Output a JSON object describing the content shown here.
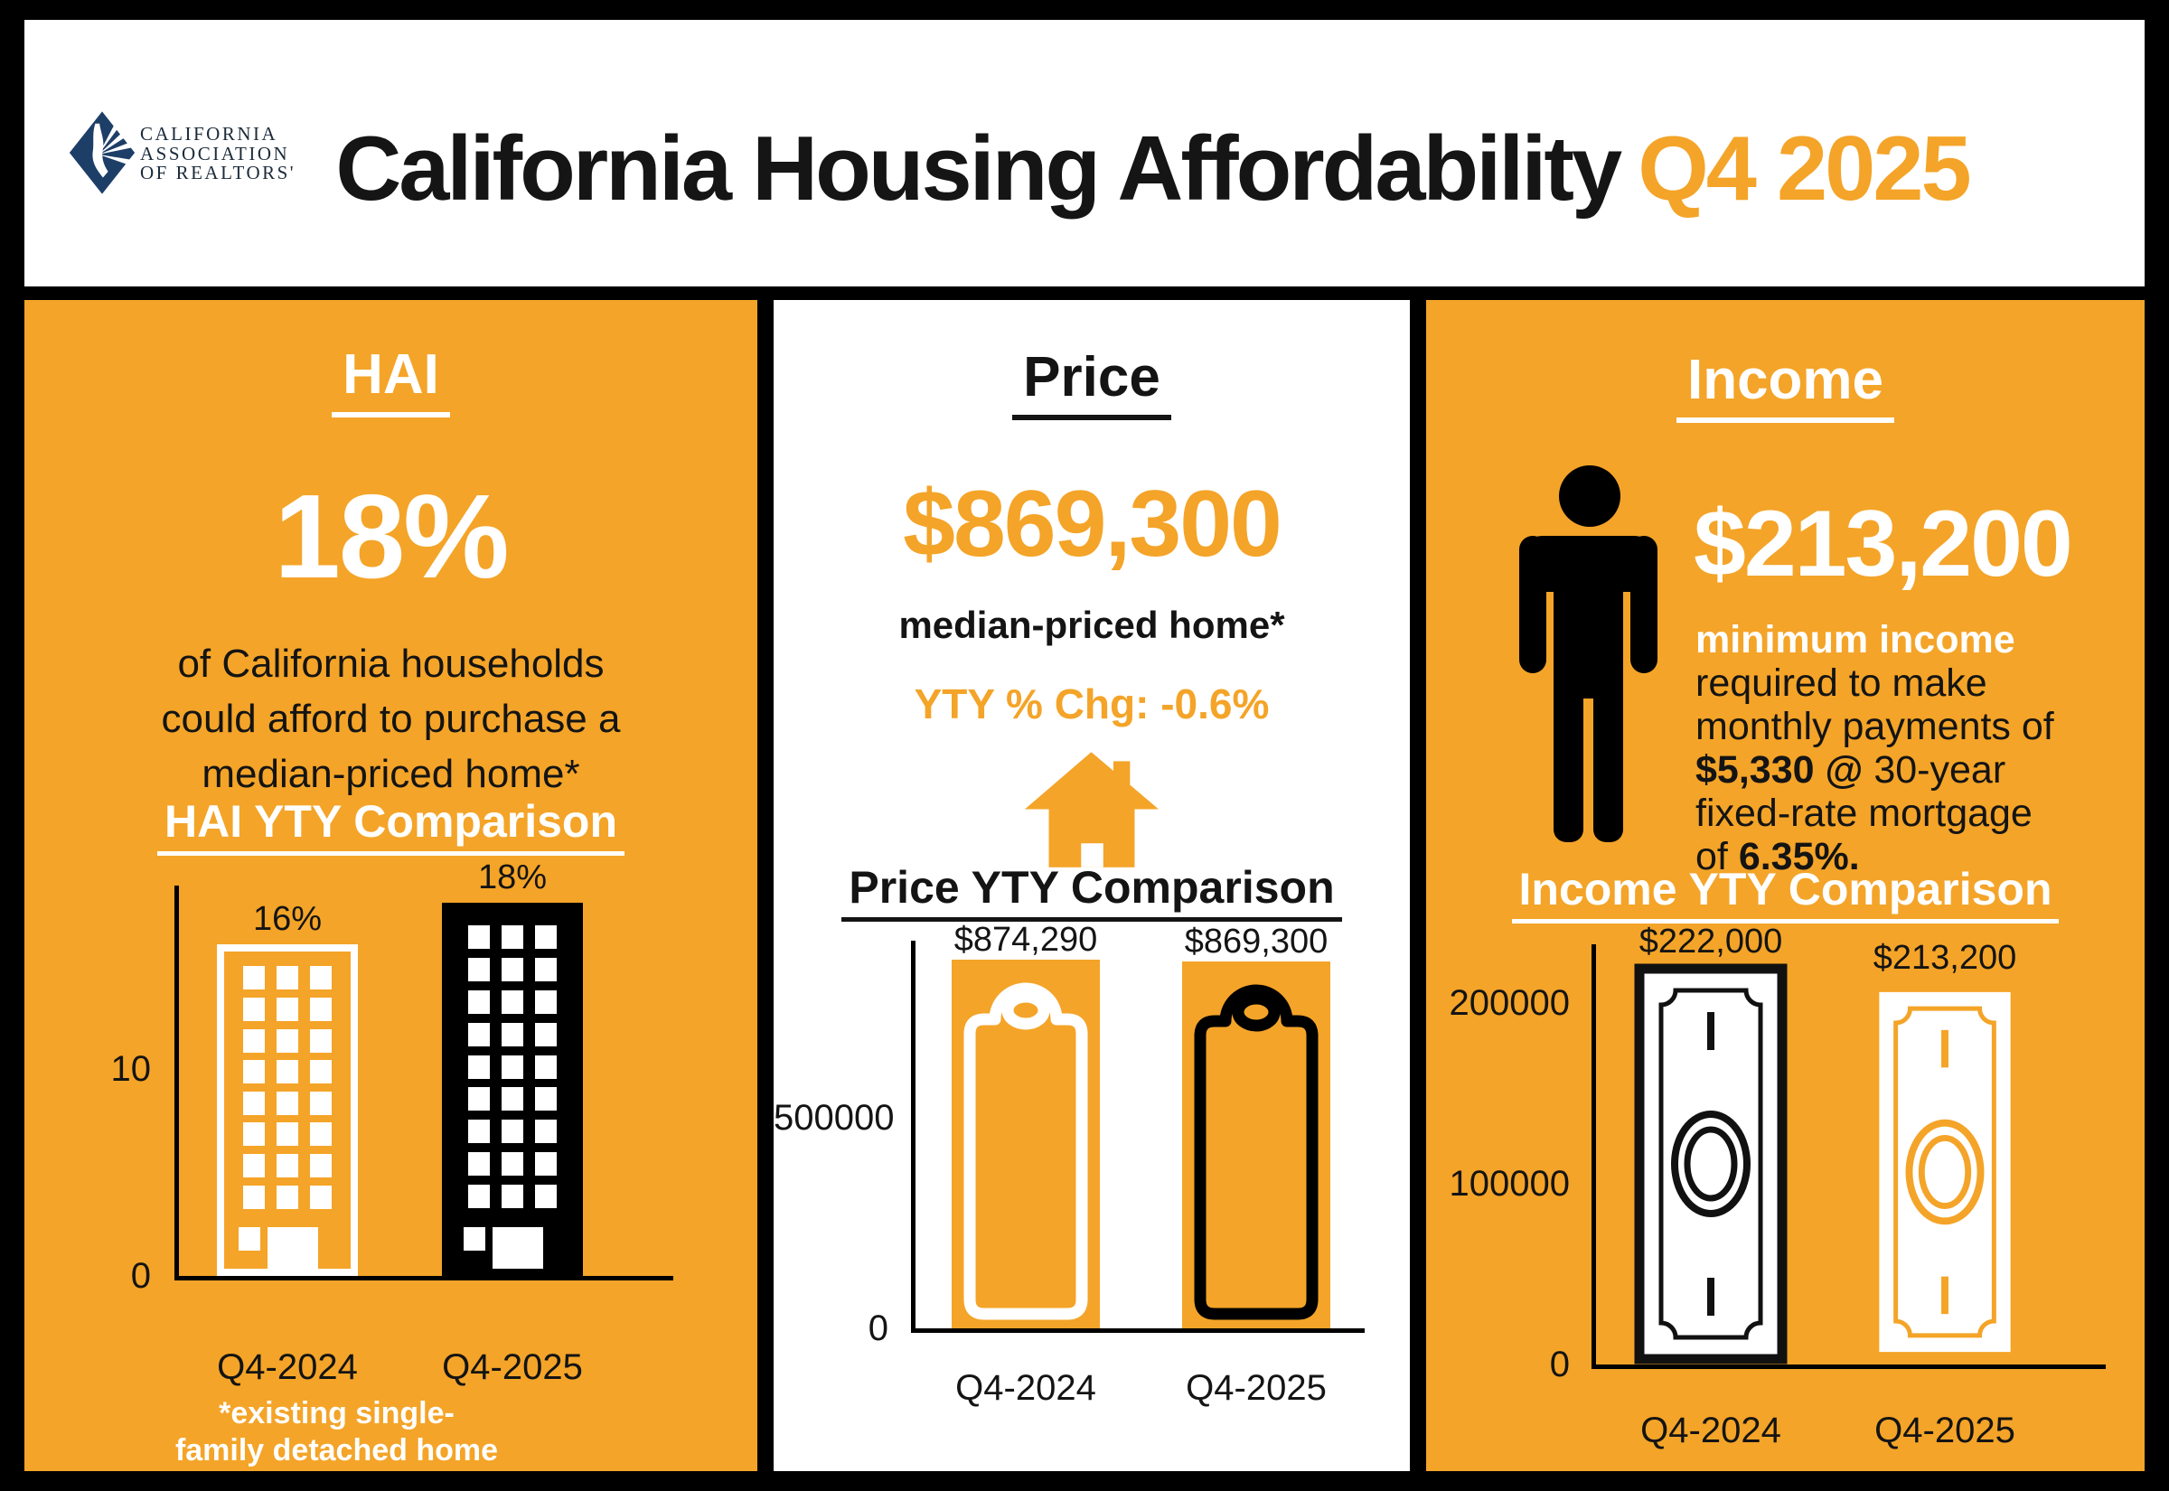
{
  "header": {
    "logo_lines": [
      "CALIFORNIA",
      "ASSOCIATION",
      "OF REALTORS'"
    ],
    "title": "California Housing Affordability",
    "title_accent": "Q4 2025"
  },
  "hai_panel": {
    "heading": "HAI",
    "big_value": "18%",
    "description_lines": [
      "of California households",
      "could afford to purchase a",
      "median-priced home*"
    ],
    "chart_title": "HAI YTY Comparison",
    "footnote_lines": [
      "*existing single-",
      "family detached home"
    ],
    "chart_data": {
      "type": "bar",
      "categories": [
        "Q4-2024",
        "Q4-2025"
      ],
      "values": [
        16,
        18
      ],
      "value_labels": [
        "16%",
        "18%"
      ],
      "yticks": [
        {
          "value": 0,
          "label": "0"
        },
        {
          "value": 10,
          "label": "10"
        }
      ],
      "ylim": [
        0,
        18.8
      ],
      "grid": false,
      "bar_icon": "building"
    }
  },
  "price_panel": {
    "heading": "Price",
    "big_value": "$869,300",
    "subtitle": "median-priced home*",
    "yty_change": "YTY % Chg: -0.6%",
    "chart_title": "Price YTY Comparison",
    "chart_data": {
      "type": "bar",
      "categories": [
        "Q4-2024",
        "Q4-2025"
      ],
      "values": [
        874290,
        869300
      ],
      "value_labels": [
        "$874,290",
        "$869,300"
      ],
      "yticks": [
        {
          "value": 0,
          "label": "0"
        },
        {
          "value": 500000,
          "label": "500000"
        }
      ],
      "ylim": [
        0,
        920000
      ],
      "grid": false,
      "bar_icon": "price-tag"
    }
  },
  "income_panel": {
    "heading": "Income",
    "big_value": "$213,200",
    "description_lines": [
      [
        {
          "t": "minimum income",
          "cls": "wb"
        }
      ],
      [
        {
          "t": "required to make",
          "cls": "k"
        }
      ],
      [
        {
          "t": "monthly payments of",
          "cls": "k"
        }
      ],
      [
        {
          "t": "$5,330 @",
          "cls": "kb"
        },
        {
          "t": " 30-year",
          "cls": "k"
        }
      ],
      [
        {
          "t": "fixed-rate mortgage",
          "cls": "k"
        }
      ],
      [
        {
          "t": "of ",
          "cls": "k"
        },
        {
          "t": "6.35%.",
          "cls": "kb"
        }
      ]
    ],
    "chart_title": "Income YTY Comparison",
    "chart_data": {
      "type": "bar",
      "categories": [
        "Q4-2024",
        "Q4-2025"
      ],
      "values": [
        222000,
        213200
      ],
      "value_labels": [
        "$222,000",
        "$213,200"
      ],
      "yticks": [
        {
          "value": 0,
          "label": "0"
        },
        {
          "value": 100000,
          "label": "100000"
        },
        {
          "value": 200000,
          "label": "200000"
        }
      ],
      "ylim": [
        0,
        232500
      ],
      "grid": false,
      "bar_icon": "dollar-bill"
    }
  },
  "colors": {
    "orange": "#F4A428",
    "navy": "#1D3E67",
    "ink": "#141414",
    "white": "#FFFFFF",
    "black": "#000000"
  }
}
